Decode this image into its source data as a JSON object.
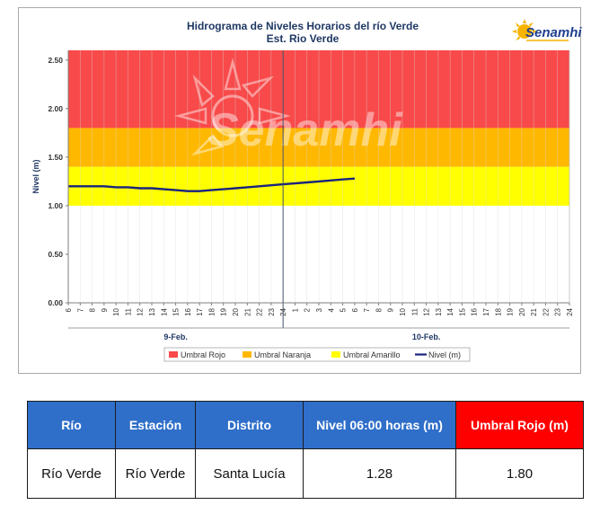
{
  "chart_data": {
    "type": "line",
    "title": "Hidrograma de Niveles Horarios del río Verde",
    "subtitle": "Est. Rio Verde",
    "ylabel": "Nivel (m)",
    "ylim": [
      0,
      2.6
    ],
    "yticks": [
      "0.00",
      "0.50",
      "1.00",
      "1.50",
      "2.00",
      "2.50"
    ],
    "xticks": [
      "6",
      "7",
      "8",
      "9",
      "10",
      "11",
      "12",
      "13",
      "14",
      "15",
      "16",
      "17",
      "18",
      "19",
      "20",
      "21",
      "22",
      "23",
      "24",
      "1",
      "2",
      "3",
      "4",
      "5",
      "6",
      "7",
      "8",
      "9",
      "10",
      "11",
      "12",
      "13",
      "14",
      "15",
      "16",
      "17",
      "18",
      "19",
      "20",
      "21",
      "22",
      "23",
      "24"
    ],
    "day_labels": [
      "9-Feb.",
      "10-Feb."
    ],
    "bands": [
      {
        "name": "Umbral Rojo",
        "from": 1.8,
        "to": 2.6,
        "color": "#f84a4a"
      },
      {
        "name": "Umbral Naranja",
        "from": 1.4,
        "to": 1.8,
        "color": "#ffb800"
      },
      {
        "name": "Umbral Amarillo",
        "from": 1.0,
        "to": 1.4,
        "color": "#ffff00"
      }
    ],
    "series": [
      {
        "name": "Nivel (m)",
        "color": "#1a237e",
        "values": [
          1.2,
          1.2,
          1.2,
          1.2,
          1.19,
          1.19,
          1.18,
          1.18,
          1.17,
          1.16,
          1.15,
          1.15,
          1.16,
          1.17,
          1.18,
          1.19,
          1.2,
          1.21,
          1.22,
          1.23,
          1.24,
          1.25,
          1.26,
          1.27,
          1.28
        ]
      }
    ],
    "legend": [
      "Umbral Rojo",
      "Umbral Naranja",
      "Umbral Amarillo",
      "Nivel (m)"
    ],
    "legend_position": "bottom",
    "grid": true
  },
  "logo": {
    "text": "Senamhi",
    "watermark": "Senamhi"
  },
  "table": {
    "headers": [
      "Río",
      "Estación",
      "Distrito",
      "Nivel 06:00 horas (m)",
      "Umbral Rojo (m)"
    ],
    "row": [
      "Río Verde",
      "Río Verde",
      "Santa Lucía",
      "1.28",
      "1.80"
    ]
  }
}
